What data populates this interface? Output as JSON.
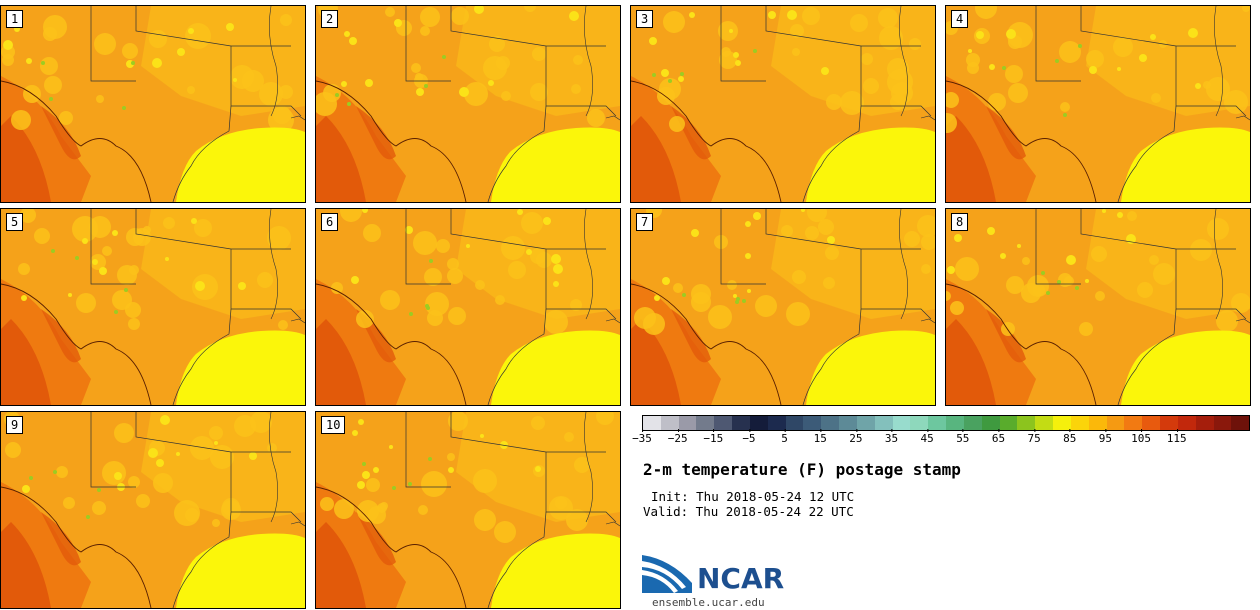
{
  "panels": [
    {
      "label": "1"
    },
    {
      "label": "2"
    },
    {
      "label": "3"
    },
    {
      "label": "4"
    },
    {
      "label": "5"
    },
    {
      "label": "6"
    },
    {
      "label": "7"
    },
    {
      "label": "8"
    },
    {
      "label": "9"
    },
    {
      "label": "10"
    }
  ],
  "colorbar": {
    "colors": [
      "#e3e3e8",
      "#bfbfc8",
      "#9a9aa8",
      "#737b8c",
      "#4e5872",
      "#27314f",
      "#141c3a",
      "#1c2a4e",
      "#2f4766",
      "#3c5b78",
      "#4d7287",
      "#5d8a97",
      "#6fa4a8",
      "#83c0bc",
      "#98dccd",
      "#8ed8bc",
      "#6dc79f",
      "#58b57f",
      "#4aa260",
      "#3f9a3f",
      "#59ac2c",
      "#8cc41e",
      "#c3dc14",
      "#f5f00c",
      "#fbd40a",
      "#fbb80a",
      "#f59a12",
      "#f27a12",
      "#e85a0e",
      "#d43a0c",
      "#c2280c",
      "#a51e0c",
      "#8a180c",
      "#6e120a"
    ],
    "tick_labels": [
      "−35",
      "−25",
      "−15",
      "−5",
      "5",
      "15",
      "25",
      "35",
      "45",
      "55",
      "65",
      "75",
      "85",
      "95",
      "105",
      "115"
    ]
  },
  "title": "2-m temperature (F) postage stamp",
  "init": "Init: Thu 2018-05-24 12 UTC",
  "valid": "Valid: Thu 2018-05-24 22 UTC",
  "logo_text": "NCAR",
  "url": "ensemble.ucar.edu",
  "map_colors": {
    "land_base": "#f5a21a",
    "hot": "#ef7a10",
    "hotter": "#e25a0a",
    "warm": "#fbc21a",
    "mild": "#fbe218",
    "gulf": "#fbf60a",
    "green": "#9ccc22"
  }
}
